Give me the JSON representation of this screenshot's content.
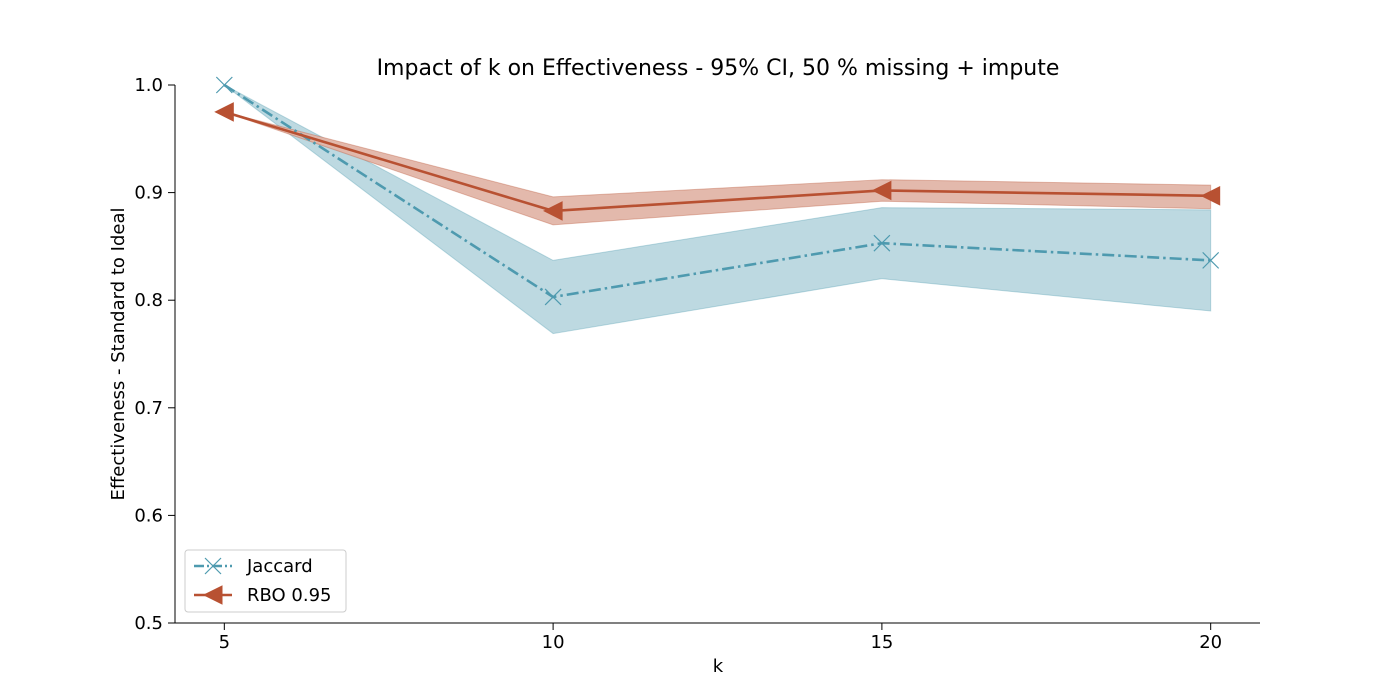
{
  "chart_data": {
    "type": "line",
    "title": "Impact of k on Effectiveness - 95% CI, 50 % missing + impute",
    "xlabel": "k",
    "ylabel": "Effectiveness - Standard to Ideal",
    "x": [
      5,
      10,
      15,
      20
    ],
    "xticks": [
      "5",
      "10",
      "15",
      "20"
    ],
    "xlim": [
      4.25,
      20.75
    ],
    "ylim": [
      0.5,
      1.0
    ],
    "yticks": [
      "0.5",
      "0.6",
      "0.7",
      "0.8",
      "0.9",
      "1.0"
    ],
    "grid": false,
    "legend_position": "lower-left",
    "series": [
      {
        "name": "Jaccard",
        "values": [
          1.0,
          0.803,
          0.853,
          0.837
        ],
        "ci_low": [
          1.0,
          0.769,
          0.82,
          0.79
        ],
        "ci_high": [
          1.0,
          0.837,
          0.886,
          0.884
        ],
        "color": "#4e9aaf",
        "band_color": "#b9d7df",
        "line_style": "dashdot",
        "marker": "x"
      },
      {
        "name": "RBO 0.95",
        "values": [
          0.975,
          0.883,
          0.902,
          0.897
        ],
        "ci_low": [
          0.975,
          0.87,
          0.892,
          0.885
        ],
        "ci_high": [
          0.975,
          0.896,
          0.912,
          0.907
        ],
        "color": "#b85132",
        "band_color": "#e1b5a8",
        "line_style": "solid",
        "marker": "triangle-left"
      }
    ]
  }
}
